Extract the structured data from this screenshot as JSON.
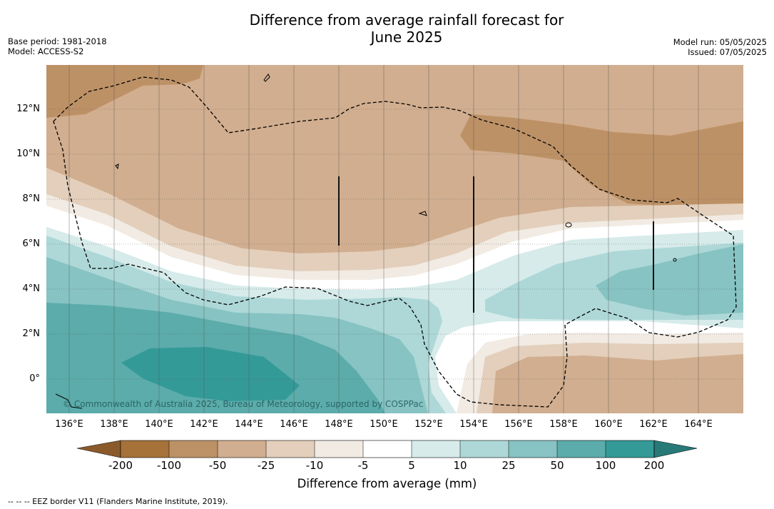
{
  "title_line1": "Difference from average rainfall forecast for",
  "title_line2": "June 2025",
  "left_meta": {
    "base_period": "Base period: 1981-2018",
    "model": "Model: ACCESS-S2"
  },
  "right_meta": {
    "model_run": "Model run: 05/05/2025",
    "issued": "Issued: 07/05/2025"
  },
  "y_axis_labels": [
    "12°N",
    "10°N",
    "8°N",
    "6°N",
    "4°N",
    "2°N",
    "0°"
  ],
  "x_axis_labels": [
    "136°E",
    "138°E",
    "140°E",
    "142°E",
    "144°E",
    "146°E",
    "148°E",
    "150°E",
    "152°E",
    "154°E",
    "156°E",
    "158°E",
    "160°E",
    "162°E",
    "164°E"
  ],
  "colorbar": {
    "tick_labels": [
      "-200",
      "-100",
      "-50",
      "-25",
      "-10",
      "-5",
      "5",
      "10",
      "25",
      "50",
      "100",
      "200"
    ],
    "colors": [
      "#a6723a",
      "#bd9166",
      "#d1ae8f",
      "#e3cfbb",
      "#f1ebe3",
      "#ffffff",
      "#d6ebea",
      "#add8d7",
      "#86c3c2",
      "#5bacab",
      "#349a98"
    ],
    "under_color": "#8b5a2b",
    "over_color": "#277a78",
    "title": "Difference from average (mm)"
  },
  "copyright": "© Commonwealth of Australia 2025, Bureau of Meteorology, supported by COSPPac",
  "footnote": "--  --  -- EEZ border V11 (Flanders Marine Institute, 2019)."
}
